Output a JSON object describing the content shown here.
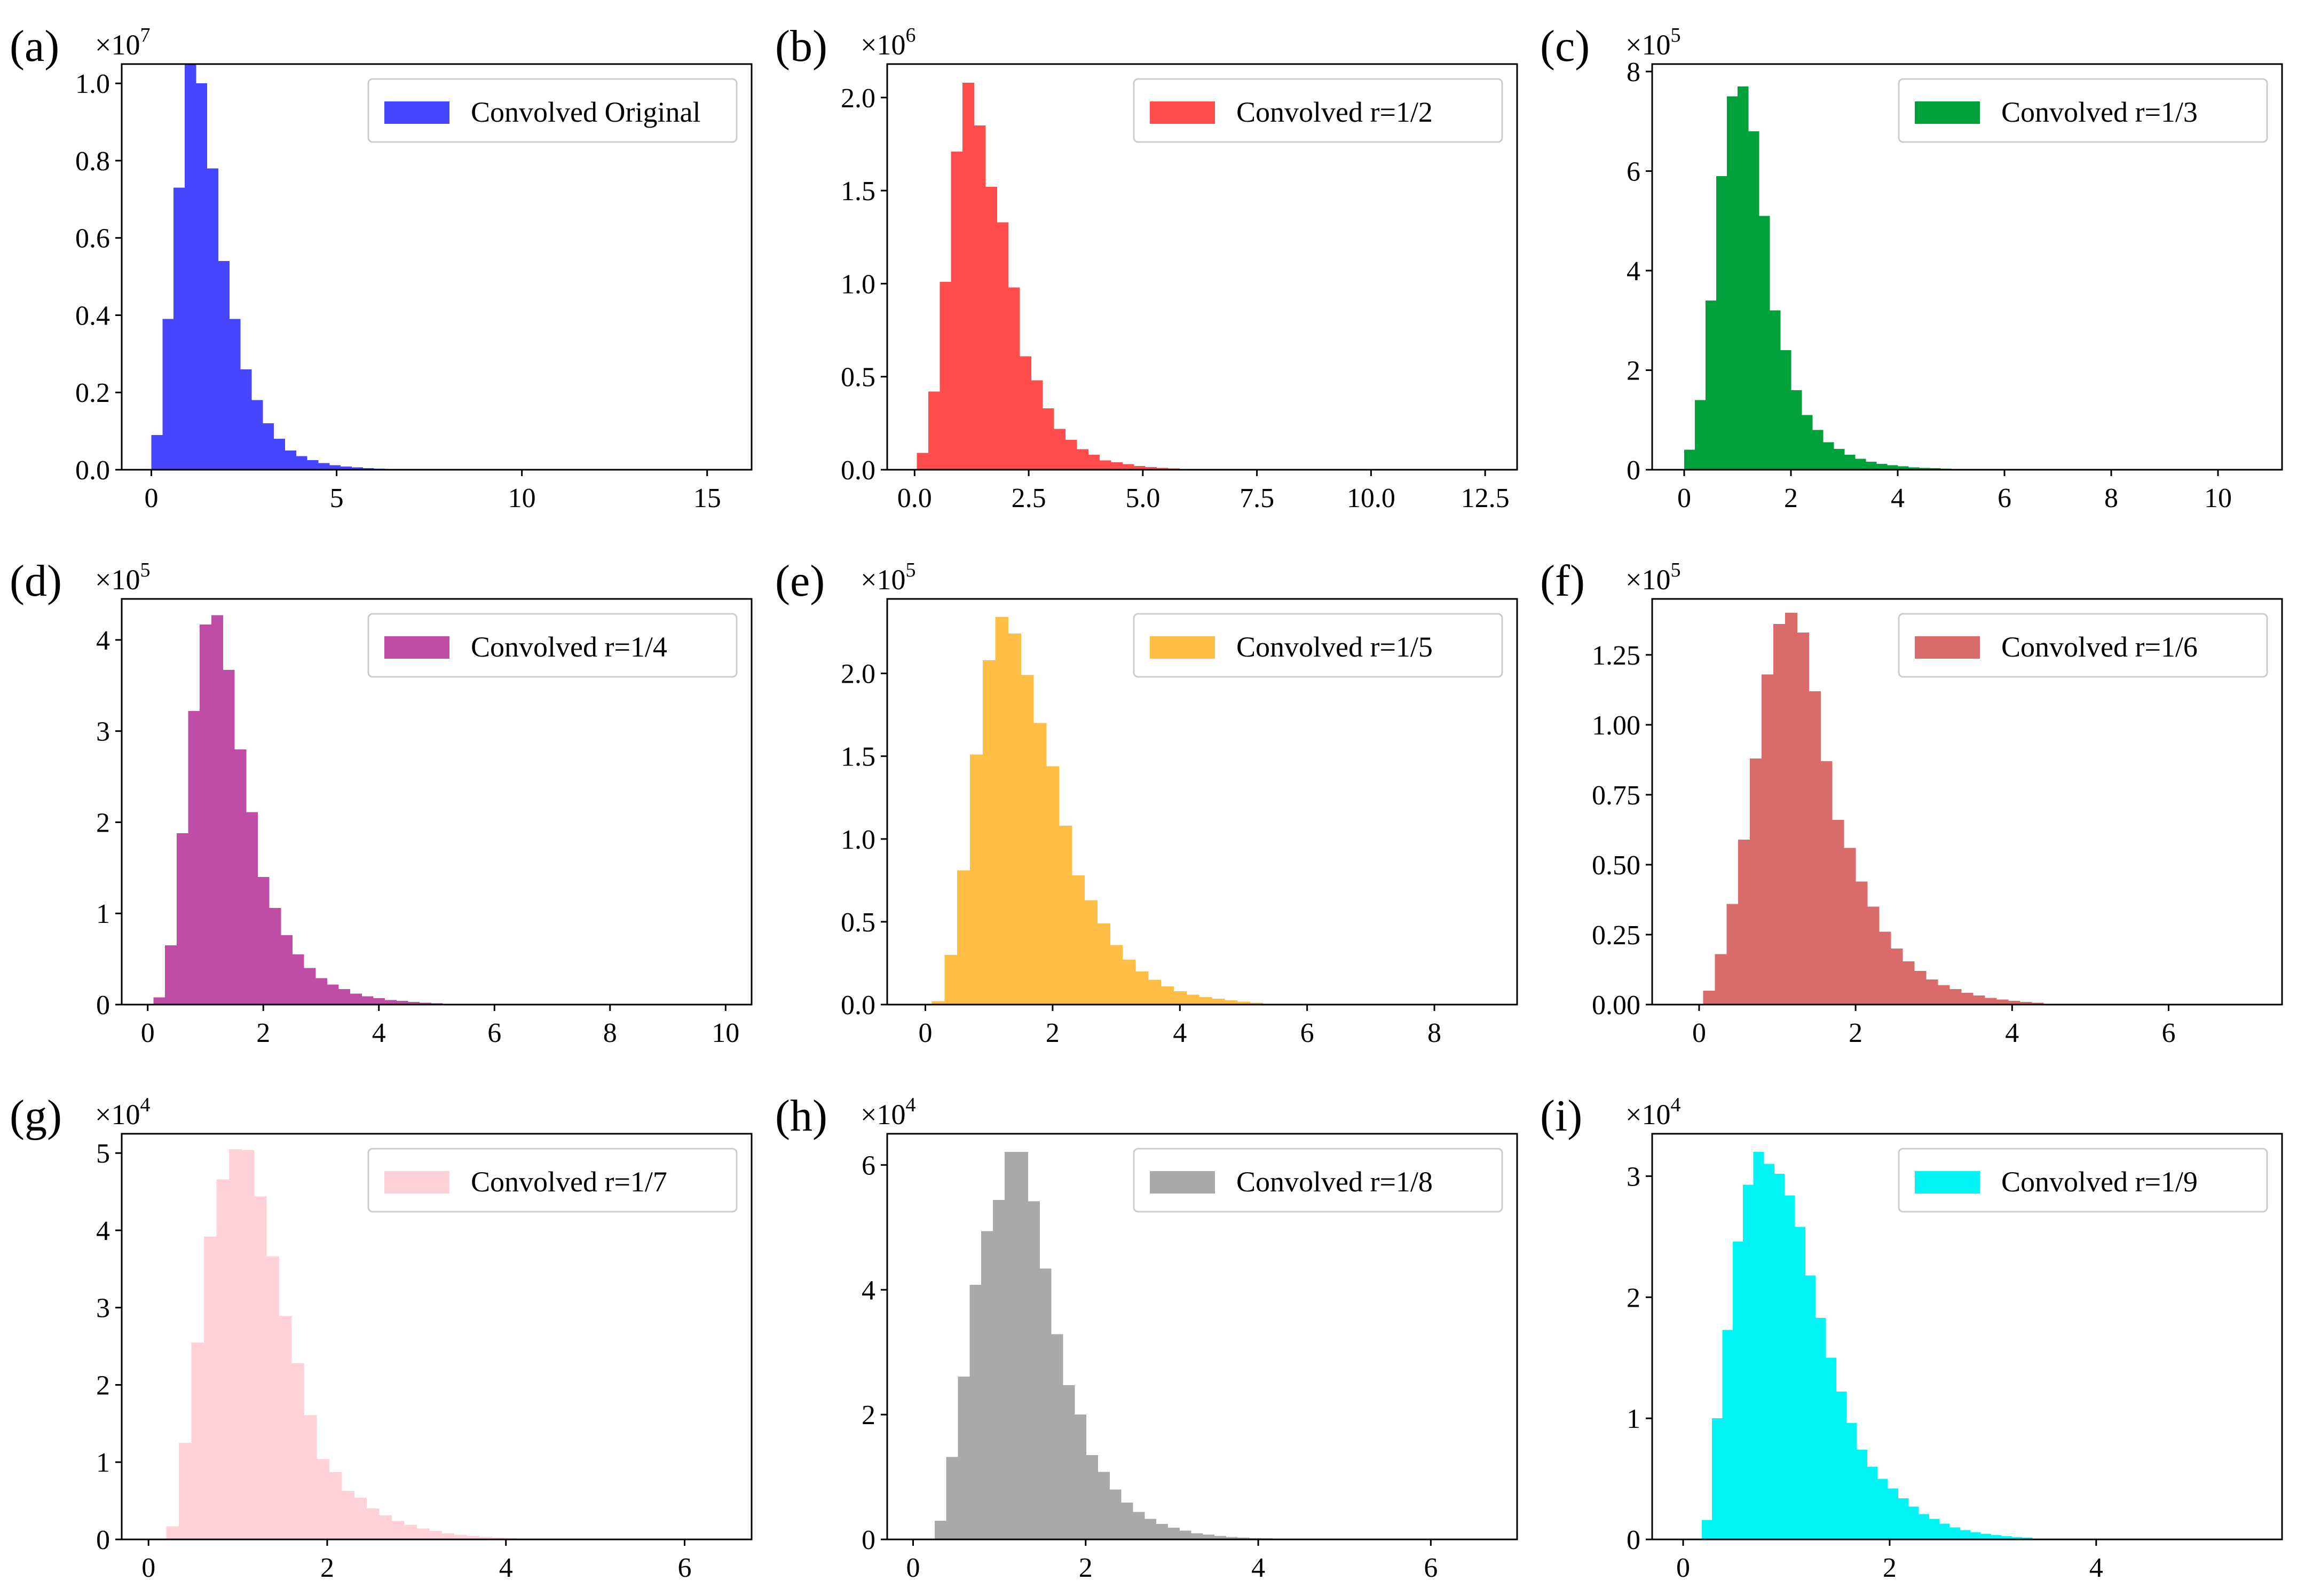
{
  "chart_data": [
    {
      "type": "bar",
      "panel_label": "(a)",
      "legend": "Convolved Original",
      "legend_position": "top-right",
      "color": "#4646FF",
      "multiplier_text": "×10",
      "exponent": "7",
      "grid": false,
      "xlim": [
        -0.8,
        16.2
      ],
      "ylim": [
        0,
        1.05
      ],
      "xticks": [
        {
          "v": 0,
          "label": "0"
        },
        {
          "v": 5,
          "label": "5"
        },
        {
          "v": 10,
          "label": "10"
        },
        {
          "v": 15,
          "label": "15"
        }
      ],
      "yticks": [
        {
          "v": 0,
          "label": "0.0"
        },
        {
          "v": 0.2,
          "label": "0.2"
        },
        {
          "v": 0.4,
          "label": "0.4"
        },
        {
          "v": 0.6,
          "label": "0.6"
        },
        {
          "v": 0.8,
          "label": "0.8"
        },
        {
          "v": 1.0,
          "label": "1.0"
        }
      ],
      "bin_start": 0.0,
      "bin_width": 0.3,
      "values": [
        0.09,
        0.39,
        0.73,
        1.05,
        1.0,
        0.78,
        0.54,
        0.39,
        0.26,
        0.18,
        0.12,
        0.08,
        0.05,
        0.035,
        0.025,
        0.017,
        0.012,
        0.008,
        0.006,
        0.004,
        0.003,
        0.002
      ]
    },
    {
      "type": "bar",
      "panel_label": "(b)",
      "legend": "Convolved r=1/2",
      "legend_position": "top-right",
      "color": "#FF4D4D",
      "multiplier_text": "×10",
      "exponent": "6",
      "grid": false,
      "xlim": [
        -0.6,
        13.2
      ],
      "ylim": [
        0,
        2.18
      ],
      "xticks": [
        {
          "v": 0,
          "label": "0.0"
        },
        {
          "v": 2.5,
          "label": "2.5"
        },
        {
          "v": 5,
          "label": "5.0"
        },
        {
          "v": 7.5,
          "label": "7.5"
        },
        {
          "v": 10,
          "label": "10.0"
        },
        {
          "v": 12.5,
          "label": "12.5"
        }
      ],
      "yticks": [
        {
          "v": 0,
          "label": "0.0"
        },
        {
          "v": 0.5,
          "label": "0.5"
        },
        {
          "v": 1.0,
          "label": "1.0"
        },
        {
          "v": 1.5,
          "label": "1.5"
        },
        {
          "v": 2.0,
          "label": "2.0"
        }
      ],
      "bin_start": 0.05,
      "bin_width": 0.25,
      "values": [
        0.09,
        0.42,
        1.01,
        1.71,
        2.08,
        1.85,
        1.52,
        1.33,
        0.98,
        0.61,
        0.48,
        0.33,
        0.22,
        0.16,
        0.11,
        0.08,
        0.05,
        0.04,
        0.03,
        0.02,
        0.015,
        0.01,
        0.007,
        0.005
      ]
    },
    {
      "type": "bar",
      "panel_label": "(c)",
      "legend": "Convolved r=1/3",
      "legend_position": "top-right",
      "color": "#00A13A",
      "multiplier_text": "×10",
      "exponent": "5",
      "grid": false,
      "xlim": [
        -0.6,
        11.2
      ],
      "ylim": [
        0,
        8.15
      ],
      "xticks": [
        {
          "v": 0,
          "label": "0"
        },
        {
          "v": 2,
          "label": "2"
        },
        {
          "v": 4,
          "label": "4"
        },
        {
          "v": 6,
          "label": "6"
        },
        {
          "v": 8,
          "label": "8"
        },
        {
          "v": 10,
          "label": "10"
        }
      ],
      "yticks": [
        {
          "v": 0,
          "label": "0"
        },
        {
          "v": 2,
          "label": "2"
        },
        {
          "v": 4,
          "label": "4"
        },
        {
          "v": 6,
          "label": "6"
        },
        {
          "v": 8,
          "label": "8"
        }
      ],
      "bin_start": 0.0,
      "bin_width": 0.2,
      "values": [
        0.4,
        1.4,
        3.4,
        5.9,
        7.5,
        7.7,
        6.8,
        5.1,
        3.2,
        2.4,
        1.6,
        1.1,
        0.8,
        0.55,
        0.42,
        0.3,
        0.22,
        0.16,
        0.12,
        0.09,
        0.07,
        0.05,
        0.04,
        0.03,
        0.02,
        0.015,
        0.01,
        0.008
      ]
    },
    {
      "type": "bar",
      "panel_label": "(d)",
      "legend": "Convolved r=1/4",
      "legend_position": "top-right",
      "color": "#BF4DA6",
      "multiplier_text": "×10",
      "exponent": "5",
      "grid": false,
      "xlim": [
        -0.45,
        10.45
      ],
      "ylim": [
        0,
        4.45
      ],
      "xticks": [
        {
          "v": 0,
          "label": "0"
        },
        {
          "v": 2,
          "label": "2"
        },
        {
          "v": 4,
          "label": "4"
        },
        {
          "v": 6,
          "label": "6"
        },
        {
          "v": 8,
          "label": "8"
        },
        {
          "v": 10,
          "label": "10"
        }
      ],
      "yticks": [
        {
          "v": 0,
          "label": "0"
        },
        {
          "v": 1,
          "label": "1"
        },
        {
          "v": 2,
          "label": "2"
        },
        {
          "v": 3,
          "label": "3"
        },
        {
          "v": 4,
          "label": "4"
        }
      ],
      "bin_start": 0.1,
      "bin_width": 0.2,
      "values": [
        0.08,
        0.65,
        1.88,
        3.22,
        4.17,
        4.27,
        3.67,
        2.8,
        2.11,
        1.4,
        1.06,
        0.76,
        0.55,
        0.4,
        0.29,
        0.22,
        0.17,
        0.12,
        0.09,
        0.07,
        0.05,
        0.04,
        0.03,
        0.02,
        0.015,
        0.01
      ]
    },
    {
      "type": "bar",
      "panel_label": "(e)",
      "legend": "Convolved r=1/5",
      "legend_position": "top-right",
      "color": "#FFBD45",
      "multiplier_text": "×10",
      "exponent": "5",
      "grid": false,
      "xlim": [
        -0.6,
        9.3
      ],
      "ylim": [
        0,
        2.45
      ],
      "xticks": [
        {
          "v": 0,
          "label": "0"
        },
        {
          "v": 2,
          "label": "2"
        },
        {
          "v": 4,
          "label": "4"
        },
        {
          "v": 6,
          "label": "6"
        },
        {
          "v": 8,
          "label": "8"
        }
      ],
      "yticks": [
        {
          "v": 0,
          "label": "0.0"
        },
        {
          "v": 0.5,
          "label": "0.5"
        },
        {
          "v": 1.0,
          "label": "1.0"
        },
        {
          "v": 1.5,
          "label": "1.5"
        },
        {
          "v": 2.0,
          "label": "2.0"
        }
      ],
      "bin_start": 0.1,
      "bin_width": 0.2,
      "values": [
        0.02,
        0.3,
        0.81,
        1.51,
        2.08,
        2.34,
        2.24,
        1.99,
        1.7,
        1.44,
        1.08,
        0.78,
        0.63,
        0.49,
        0.36,
        0.27,
        0.2,
        0.15,
        0.11,
        0.08,
        0.06,
        0.045,
        0.035,
        0.025,
        0.018,
        0.012
      ]
    },
    {
      "type": "bar",
      "panel_label": "(f)",
      "legend": "Convolved r=1/6",
      "legend_position": "top-right",
      "color": "#D96B6B",
      "multiplier_text": "×10",
      "exponent": "5",
      "grid": false,
      "xlim": [
        -0.6,
        7.45
      ],
      "ylim": [
        0,
        1.45
      ],
      "xticks": [
        {
          "v": 0,
          "label": "0"
        },
        {
          "v": 2,
          "label": "2"
        },
        {
          "v": 4,
          "label": "4"
        },
        {
          "v": 6,
          "label": "6"
        }
      ],
      "yticks": [
        {
          "v": 0,
          "label": "0.00"
        },
        {
          "v": 0.25,
          "label": "0.25"
        },
        {
          "v": 0.5,
          "label": "0.50"
        },
        {
          "v": 0.75,
          "label": "0.75"
        },
        {
          "v": 1.0,
          "label": "1.00"
        },
        {
          "v": 1.25,
          "label": "1.25"
        }
      ],
      "bin_start": 0.05,
      "bin_width": 0.15,
      "values": [
        0.05,
        0.18,
        0.36,
        0.59,
        0.88,
        1.18,
        1.36,
        1.4,
        1.33,
        1.12,
        0.87,
        0.66,
        0.56,
        0.44,
        0.35,
        0.26,
        0.2,
        0.155,
        0.12,
        0.09,
        0.07,
        0.055,
        0.042,
        0.032,
        0.024,
        0.018,
        0.013,
        0.01,
        0.007
      ]
    },
    {
      "type": "bar",
      "panel_label": "(g)",
      "legend": "Convolved r=1/7",
      "legend_position": "top-right",
      "color": "#FFD1D9",
      "multiplier_text": "×10",
      "exponent": "4",
      "grid": false,
      "xlim": [
        -0.3,
        6.75
      ],
      "ylim": [
        0,
        5.25
      ],
      "xticks": [
        {
          "v": 0,
          "label": "0"
        },
        {
          "v": 2,
          "label": "2"
        },
        {
          "v": 4,
          "label": "4"
        },
        {
          "v": 6,
          "label": "6"
        }
      ],
      "yticks": [
        {
          "v": 0,
          "label": "0"
        },
        {
          "v": 1,
          "label": "1"
        },
        {
          "v": 2,
          "label": "2"
        },
        {
          "v": 3,
          "label": "3"
        },
        {
          "v": 4,
          "label": "4"
        },
        {
          "v": 5,
          "label": "5"
        }
      ],
      "bin_start": 0.2,
      "bin_width": 0.14,
      "values": [
        0.17,
        1.25,
        2.55,
        3.92,
        4.66,
        5.05,
        5.04,
        4.44,
        3.66,
        2.89,
        2.28,
        1.61,
        1.04,
        0.87,
        0.63,
        0.54,
        0.4,
        0.31,
        0.24,
        0.19,
        0.14,
        0.11,
        0.08,
        0.06,
        0.045,
        0.035,
        0.025,
        0.018,
        0.012,
        0.008
      ]
    },
    {
      "type": "bar",
      "panel_label": "(h)",
      "legend": "Convolved r=1/8",
      "legend_position": "top-right",
      "color": "#A9A9A9",
      "multiplier_text": "×10",
      "exponent": "4",
      "grid": false,
      "xlim": [
        -0.3,
        7.0
      ],
      "ylim": [
        0,
        6.5
      ],
      "xticks": [
        {
          "v": 0,
          "label": "0"
        },
        {
          "v": 2,
          "label": "2"
        },
        {
          "v": 4,
          "label": "4"
        },
        {
          "v": 6,
          "label": "6"
        }
      ],
      "yticks": [
        {
          "v": 0,
          "label": "0"
        },
        {
          "v": 2,
          "label": "2"
        },
        {
          "v": 4,
          "label": "4"
        },
        {
          "v": 6,
          "label": "6"
        }
      ],
      "bin_start": 0.25,
      "bin_width": 0.135,
      "values": [
        0.3,
        1.32,
        2.61,
        4.08,
        4.94,
        5.44,
        6.21,
        6.21,
        5.42,
        4.34,
        3.29,
        2.47,
        2.0,
        1.35,
        1.08,
        0.8,
        0.59,
        0.44,
        0.33,
        0.25,
        0.19,
        0.14,
        0.1,
        0.075,
        0.055,
        0.04,
        0.03,
        0.02,
        0.015,
        0.01
      ]
    },
    {
      "type": "bar",
      "panel_label": "(i)",
      "legend": "Convolved r=1/9",
      "legend_position": "top-right",
      "color": "#00F5F5",
      "multiplier_text": "×10",
      "exponent": "4",
      "grid": false,
      "xlim": [
        -0.3,
        5.8
      ],
      "ylim": [
        0,
        3.35
      ],
      "xticks": [
        {
          "v": 0,
          "label": "0"
        },
        {
          "v": 2,
          "label": "2"
        },
        {
          "v": 4,
          "label": "4"
        }
      ],
      "yticks": [
        {
          "v": 0,
          "label": "0"
        },
        {
          "v": 1,
          "label": "1"
        },
        {
          "v": 2,
          "label": "2"
        },
        {
          "v": 3,
          "label": "3"
        }
      ],
      "bin_start": 0.18,
      "bin_width": 0.1,
      "values": [
        0.16,
        1.0,
        1.73,
        2.46,
        2.93,
        3.2,
        3.1,
        3.02,
        2.84,
        2.58,
        2.18,
        1.83,
        1.5,
        1.22,
        0.96,
        0.74,
        0.6,
        0.5,
        0.42,
        0.34,
        0.27,
        0.21,
        0.17,
        0.13,
        0.1,
        0.078,
        0.06,
        0.046,
        0.035,
        0.027,
        0.02,
        0.015
      ]
    }
  ]
}
